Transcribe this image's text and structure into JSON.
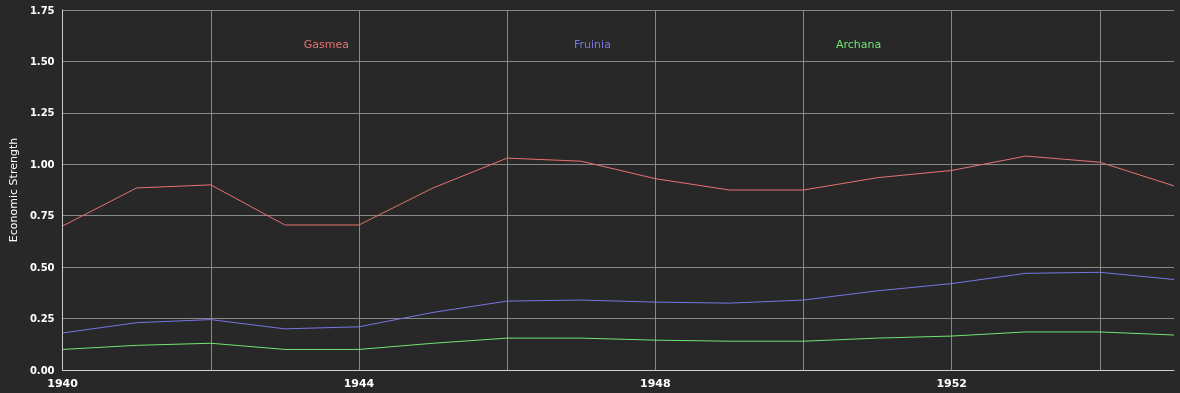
{
  "chart_data": {
    "type": "line",
    "ylabel": "Economic Strength",
    "x": [
      1940,
      1941,
      1942,
      1943,
      1944,
      1945,
      1946,
      1947,
      1948,
      1949,
      1950,
      1951,
      1952,
      1953,
      1954,
      1955
    ],
    "series": [
      {
        "name": "Gasmea",
        "color": "#e87272",
        "values": [
          0.7,
          0.885,
          0.9,
          0.705,
          0.705,
          0.885,
          1.03,
          1.015,
          0.93,
          0.875,
          0.875,
          0.935,
          0.97,
          1.04,
          1.01,
          0.895
        ]
      },
      {
        "name": "Fruinia",
        "color": "#7676e6",
        "values": [
          0.18,
          0.23,
          0.245,
          0.2,
          0.21,
          0.28,
          0.335,
          0.34,
          0.33,
          0.325,
          0.34,
          0.385,
          0.42,
          0.47,
          0.475,
          0.44
        ]
      },
      {
        "name": "Archana",
        "color": "#72e672",
        "values": [
          0.1,
          0.12,
          0.13,
          0.1,
          0.1,
          0.13,
          0.155,
          0.155,
          0.145,
          0.14,
          0.14,
          0.155,
          0.165,
          0.185,
          0.185,
          0.17
        ]
      }
    ],
    "xlim": [
      1940,
      1955
    ],
    "xticks": [
      1940,
      {
        "value": 1942,
        "label": null
      },
      1944,
      {
        "value": 1946,
        "label": null
      },
      1948,
      {
        "value": 1950,
        "label": null
      },
      1952,
      {
        "value": 1954,
        "label": null
      }
    ],
    "ylim": [
      0,
      1.75
    ],
    "yticks": [
      {
        "value": 0,
        "label": "0.00"
      },
      {
        "value": 0.25,
        "label": "0.25"
      },
      {
        "value": 0.5,
        "label": "0.50"
      },
      {
        "value": 0.75,
        "label": "0.75"
      },
      {
        "value": 1,
        "label": "1.00"
      },
      {
        "value": 1.25,
        "label": "1.25"
      },
      {
        "value": 1.5,
        "label": "1.50"
      },
      {
        "value": 1.75,
        "label": "1.75"
      }
    ],
    "grid": true,
    "legend": "top",
    "marker": "none",
    "line_style": "solid"
  }
}
